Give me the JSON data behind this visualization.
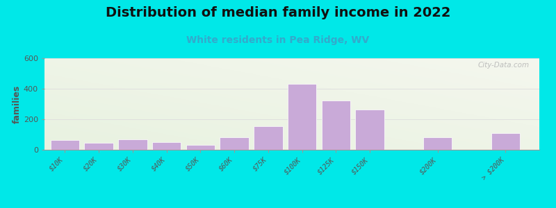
{
  "title": "Distribution of median family income in 2022",
  "subtitle": "White residents in Pea Ridge, WV",
  "ylabel": "families",
  "categories": [
    "$10K",
    "$20K",
    "$30K",
    "$40K",
    "$50K",
    "$60K",
    "$75K",
    "$100K",
    "$125K",
    "$150K",
    "$200K",
    "> $200K"
  ],
  "values": [
    65,
    45,
    70,
    52,
    30,
    80,
    155,
    430,
    325,
    265,
    80,
    110
  ],
  "x_positions": [
    0,
    1,
    2,
    3,
    4,
    5,
    6,
    7,
    8,
    9,
    11,
    13
  ],
  "bar_color": "#c9aad8",
  "bar_edgecolor": "#ffffff",
  "background_fig": "#00e8e8",
  "background_ax_top_left": "#e8f2e0",
  "background_ax_top_right": "#f8f8f0",
  "ylim": [
    0,
    600
  ],
  "yticks": [
    0,
    200,
    400,
    600
  ],
  "title_fontsize": 14,
  "subtitle_fontsize": 10,
  "watermark": "City-Data.com",
  "grid_color": "#dddddd",
  "title_color": "#111111",
  "subtitle_color": "#33aacc",
  "ylabel_color": "#555555",
  "tick_color": "#555555"
}
